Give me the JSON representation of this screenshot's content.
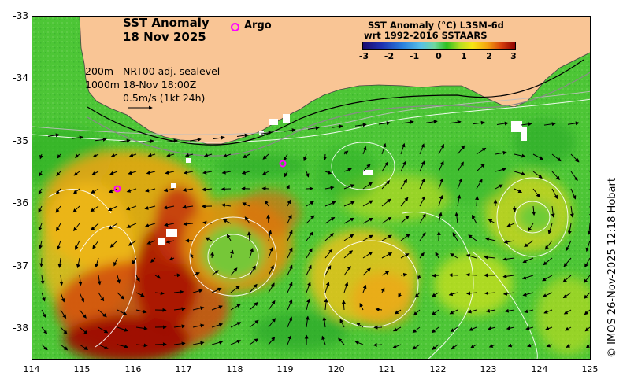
{
  "title": {
    "line1": "SST Anomaly",
    "line2": "18 Nov 2025"
  },
  "argo": {
    "label": "Argo"
  },
  "colorbar": {
    "title1": "SST Anomaly (°C) L3SM-6d",
    "title2": "wrt 1992-2016 SSTAARS",
    "ticks": [
      "-3",
      "-2",
      "-1",
      "0",
      "1",
      "2",
      "3"
    ],
    "colors": [
      "#1a0a6e",
      "#1c2fb0",
      "#2a7fdc",
      "#58c0e8",
      "#2fc020",
      "#f7e614",
      "#d8400c",
      "#8c0000"
    ]
  },
  "legend": {
    "depth1": "200m",
    "depth2": "1000m",
    "product": "NRT00 adj. sealevel",
    "time": "18-Nov 18:00Z",
    "scale": "0.5m/s (1kt 24h)"
  },
  "axes": {
    "y_ticks": [
      "-33",
      "-34",
      "-35",
      "-36",
      "-37",
      "-38"
    ],
    "x_ticks": [
      "114",
      "115",
      "116",
      "117",
      "118",
      "119",
      "120",
      "121",
      "122",
      "123",
      "124",
      "125"
    ],
    "lon_range": [
      114,
      125
    ],
    "lat_range": [
      -38.5,
      -33
    ]
  },
  "credit": "© IMOS 26-Nov-2025 12:18 Hobart",
  "map": {
    "land_color": "#f9c595",
    "ocean_base": "#4fc93a"
  }
}
